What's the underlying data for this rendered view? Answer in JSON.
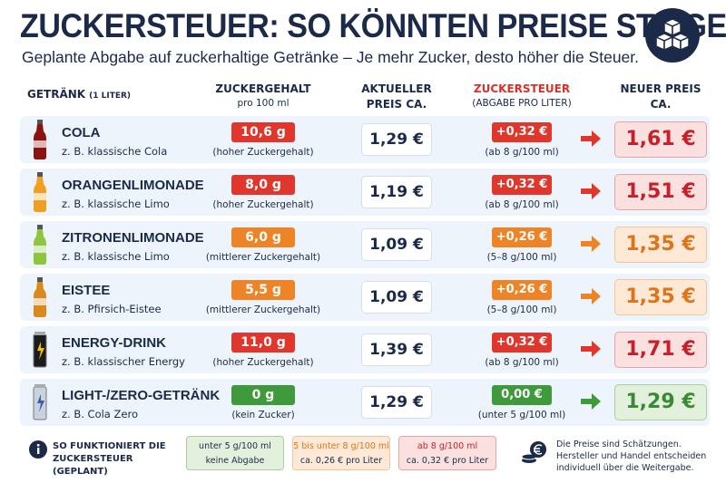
{
  "header": {
    "title": "ZUCKERSTEUER: SO KÖNNTEN PREISE STEIGEN",
    "subtitle": "Geplante Abgabe auf zuckerhaltige Getränke – Je mehr Zucker, desto höher die Steuer."
  },
  "table": {
    "columns": [
      {
        "title": "GETRÄNK",
        "note": "(1 LITER)"
      },
      {
        "title": "ZUCKERGEHALT",
        "note": "pro 100 ml"
      },
      {
        "title": "AKTUELLER",
        "note": "PREIS CA."
      },
      {
        "title": "ZUCKERSTEUER",
        "note": "(ABGABE PRO LITER)"
      },
      {
        "title": "NEUER PREIS",
        "note": "CA."
      }
    ],
    "rows": [
      {
        "name": "COLA",
        "desc": "z. B. klassische Cola",
        "sugar": "10,6 g",
        "sugar_note": "(hoher Zuckergehalt)",
        "price": "1,29 €",
        "tax": "+0,32 €",
        "tax_note": "(ab 8 g/100 ml)",
        "new_price": "1,61 €",
        "color": "#e0362c"
      },
      {
        "name": "ORANGENLIMONADE",
        "desc": "z. B. klassische Limo",
        "sugar": "8,0 g",
        "sugar_note": "(hoher Zuckergehalt)",
        "price": "1,19 €",
        "tax": "+0,32 €",
        "tax_note": "(ab 8 g/100 ml)",
        "new_price": "1,51 €",
        "color": "#e0362c"
      },
      {
        "name": "ZITRONENLIMONADE",
        "desc": "z. B. klassische Limo",
        "sugar": "6,0 g",
        "sugar_note": "(mittlerer Zuckergehalt)",
        "price": "1,09 €",
        "tax": "+0,26 €",
        "tax_note": "(5–8 g/100 ml)",
        "new_price": "1,35 €",
        "color": "#ef8427"
      },
      {
        "name": "EISTEE",
        "desc": "z. B. Pfirsich-Eistee",
        "sugar": "5,5 g",
        "sugar_note": "(mittlerer Zuckergehalt)",
        "price": "1,09 €",
        "tax": "+0,26 €",
        "tax_note": "(5–8 g/100 ml)",
        "new_price": "1,35 €",
        "color": "#ef8427"
      },
      {
        "name": "ENERGY-DRINK",
        "desc": "z. B. klassischer Energy",
        "sugar": "11,0 g",
        "sugar_note": "(hoher Zuckergehalt)",
        "price": "1,39 €",
        "tax": "+0,32 €",
        "tax_note": "(ab 8 g/100 ml)",
        "new_price": "1,71 €",
        "color": "#e0362c"
      },
      {
        "name": "LIGHT-/ZERO-GETRÄNK",
        "desc": "z. B. Cola Zero",
        "sugar": "0 g",
        "sugar_note": "(kein Zucker)",
        "price": "1,29 €",
        "tax": "0,00 €",
        "tax_note": "(unter 5 g/100 ml)",
        "new_price": "1,29 €",
        "color": "#3f9a3c"
      }
    ]
  },
  "footer": {
    "info": "SO FUNKTIONIERT DIE ZUCKERSTEUER (GEPLANT)",
    "tiers": [
      {
        "range": "unter 5 g/100 ml",
        "note": "keine Abgabe",
        "color": "#3f9a3c"
      },
      {
        "range": "5 bis unter 8 g/100 ml",
        "note": "ca. 0,26 € pro Liter",
        "color": "#ef8427"
      },
      {
        "range": "ab 8 g/100 ml",
        "note": "ca. 0,32 € pro Liter",
        "color": "#e0362c"
      }
    ],
    "disclaimer": "Die Preise sind Schätzungen. Hersteller und Handel entscheiden individuell über die Weitergabe."
  }
}
